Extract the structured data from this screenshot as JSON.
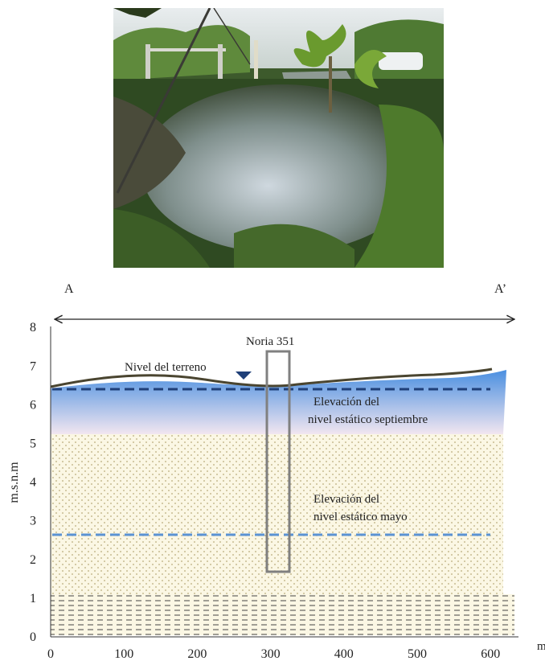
{
  "photo": {
    "description_icon": "field-photo"
  },
  "section": {
    "endpoint_left": "A",
    "endpoint_right": "A’",
    "well_label": "Noria 351",
    "terrain_label": "Nivel del terreno",
    "september_label_line1": "Elevación del",
    "september_label_line2": "nivel estático septiembre",
    "may_label_line1": "Elevación del",
    "may_label_line2": "nivel estático mayo",
    "y_axis_label": "m.s.n.m",
    "x_unit": "m",
    "x_ticks": [
      "0",
      "100",
      "200",
      "300",
      "400",
      "500",
      "600"
    ],
    "y_ticks": [
      "0",
      "1",
      "2",
      "3",
      "4",
      "5",
      "6",
      "7",
      "8"
    ]
  },
  "colors": {
    "water_top": "#4a8fe0",
    "water_bottom": "#f2e6f0",
    "sand": "#fbf7e4",
    "terrain": "#4a4530",
    "sept_line": "#1f3f78",
    "may_line": "#5b93d4",
    "well": "#808080"
  }
}
